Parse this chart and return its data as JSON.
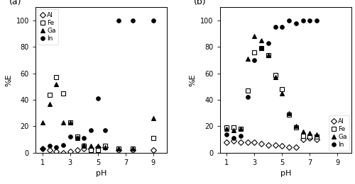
{
  "panel_a": {
    "Al": {
      "pH": [
        1.0,
        1.5,
        2.0,
        2.5,
        3.0,
        3.5,
        4.0,
        4.5,
        5.0,
        5.5,
        6.5,
        7.5,
        9.0
      ],
      "%E": [
        3,
        2,
        1,
        0,
        1,
        2,
        3,
        3,
        4,
        4,
        2,
        2,
        2
      ]
    },
    "Fe": {
      "pH": [
        1.5,
        2.0,
        2.5,
        3.0,
        3.5,
        4.0,
        4.5,
        5.0,
        5.5,
        6.5,
        7.5,
        9.0
      ],
      "%E": [
        44,
        57,
        45,
        23,
        12,
        5,
        2,
        2,
        5,
        3,
        3,
        11
      ]
    },
    "Ga": {
      "pH": [
        1.0,
        1.5,
        2.0,
        2.5,
        3.0,
        3.5,
        4.0,
        4.5,
        5.0,
        5.5,
        6.5,
        7.5,
        9.0
      ],
      "%E": [
        23,
        37,
        52,
        23,
        23,
        11,
        6,
        5,
        5,
        4,
        3,
        3,
        26
      ]
    },
    "In": {
      "pH": [
        1.0,
        1.5,
        2.0,
        2.5,
        3.0,
        3.5,
        4.0,
        4.5,
        5.0,
        5.5,
        6.5,
        7.5,
        9.0
      ],
      "%E": [
        3,
        5,
        4,
        6,
        12,
        11,
        11,
        17,
        41,
        17,
        100,
        100,
        100
      ]
    }
  },
  "panel_b": {
    "Al": {
      "pH": [
        1.0,
        1.5,
        2.0,
        2.5,
        3.0,
        3.5,
        4.0,
        4.5,
        5.0,
        5.5,
        6.0,
        6.5,
        7.0,
        7.5
      ],
      "%E": [
        8,
        9,
        8,
        8,
        8,
        7,
        6,
        6,
        5,
        4,
        4,
        10,
        11,
        10
      ]
    },
    "Fe": {
      "pH": [
        1.0,
        1.5,
        2.0,
        2.5,
        3.0,
        3.5,
        4.0,
        4.5,
        5.0,
        5.5,
        6.0,
        6.5,
        7.0,
        7.5
      ],
      "%E": [
        19,
        19,
        18,
        47,
        76,
        79,
        74,
        59,
        48,
        29,
        19,
        13,
        12,
        12
      ]
    },
    "Ga": {
      "pH": [
        1.0,
        1.5,
        2.0,
        2.5,
        3.0,
        3.5,
        4.0,
        4.5,
        5.0,
        5.5,
        6.0,
        6.5,
        7.0,
        7.5
      ],
      "%E": [
        18,
        17,
        18,
        71,
        88,
        85,
        74,
        57,
        45,
        30,
        20,
        16,
        15,
        14
      ]
    },
    "In": {
      "pH": [
        1.0,
        1.5,
        2.0,
        2.5,
        3.0,
        3.5,
        4.0,
        4.5,
        5.0,
        5.5,
        6.0,
        6.5,
        7.0,
        7.5
      ],
      "%E": [
        14,
        11,
        13,
        42,
        70,
        79,
        83,
        95,
        95,
        100,
        98,
        100,
        100,
        100
      ]
    }
  },
  "color": "black",
  "markersize": 4,
  "ylim": [
    0,
    110
  ],
  "xlim": [
    0.5,
    10
  ],
  "yticks": [
    0,
    20,
    40,
    60,
    80,
    100
  ],
  "xticks": [
    1,
    3,
    5,
    7,
    9
  ],
  "xlabel": "pH",
  "ylabel": "%E",
  "label_a": "(a)",
  "label_b": "(b)"
}
